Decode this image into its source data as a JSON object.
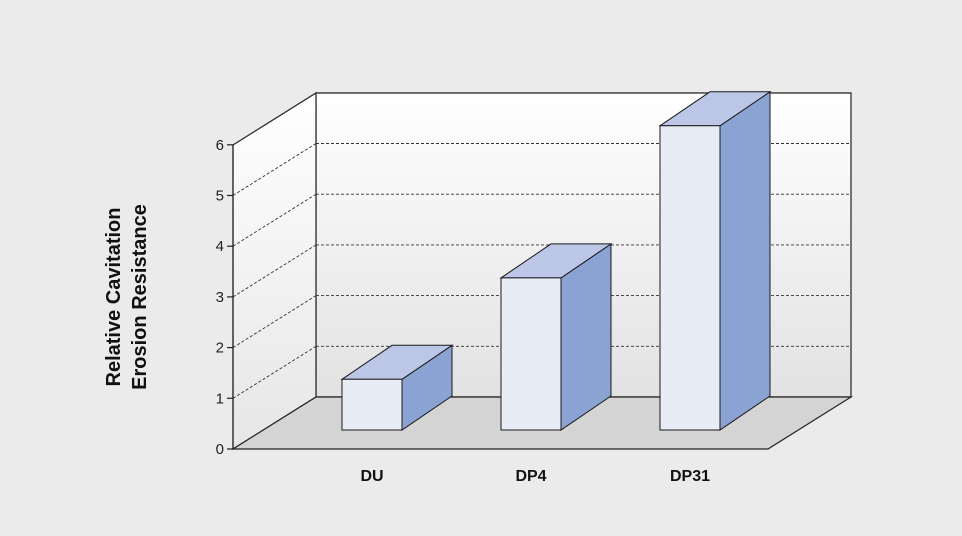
{
  "chart_data": {
    "type": "bar",
    "style": "3d-column",
    "title": "",
    "xlabel": "",
    "ylabel_lines": [
      "Relative Cavitation",
      "Erosion Resistance"
    ],
    "categories": [
      "DU",
      "DP4",
      "DP31"
    ],
    "values": [
      1.0,
      3.0,
      6.0
    ],
    "ylim": [
      0,
      6
    ],
    "yticks": [
      "0",
      "1",
      "2",
      "3",
      "4",
      "5",
      "6"
    ],
    "grid": true,
    "legend": "none",
    "colors": {
      "background": "#ebebeb",
      "bar_front": "#e8ecf7",
      "bar_top": "#bcc6e6",
      "bar_side": "#8aa3d2",
      "gridline": "#333333",
      "floor": "#d4d4d4"
    }
  }
}
